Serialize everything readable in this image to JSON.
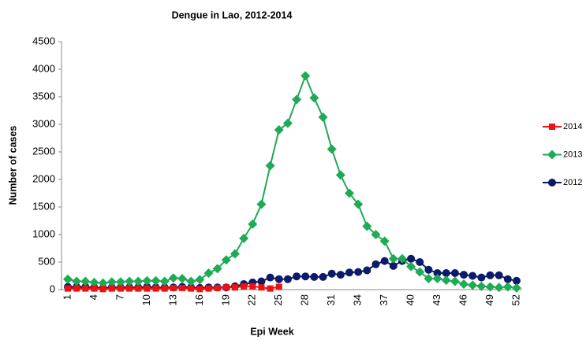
{
  "chart_data": {
    "type": "line",
    "title": "Dengue in Lao, 2012-2014",
    "x_label": "Epi Week",
    "y_label": "Number of cases",
    "categories": [
      "1",
      null,
      null,
      "4",
      null,
      null,
      "7",
      null,
      null,
      "10",
      null,
      null,
      "13",
      null,
      null,
      "16",
      null,
      null,
      "19",
      null,
      null,
      "22",
      null,
      null,
      "25",
      null,
      null,
      "28",
      null,
      null,
      "31",
      null,
      null,
      "34",
      null,
      null,
      "37",
      null,
      null,
      "40",
      null,
      null,
      "43",
      null,
      null,
      "46",
      null,
      null,
      "49",
      null,
      null,
      "52"
    ],
    "ylim": [
      0,
      4500
    ],
    "yticks": [
      0,
      500,
      1000,
      1500,
      2000,
      2500,
      3000,
      3500,
      4000,
      4500
    ],
    "grid": false,
    "legend": "right",
    "series": [
      {
        "name": "2014",
        "color": "#ee1111",
        "marker": "square",
        "values": [
          20,
          20,
          20,
          20,
          10,
          20,
          20,
          20,
          20,
          20,
          20,
          20,
          30,
          30,
          20,
          10,
          20,
          30,
          40,
          40,
          60,
          60,
          40,
          20,
          50,
          null,
          null,
          null,
          null,
          null,
          null,
          null,
          null,
          null,
          null,
          null,
          null,
          null,
          null,
          null,
          null,
          null,
          null,
          null,
          null,
          null,
          null,
          null,
          null,
          null,
          null,
          null
        ]
      },
      {
        "name": "2013",
        "color": "#1faa55",
        "marker": "diamond",
        "values": [
          190,
          150,
          150,
          130,
          120,
          140,
          140,
          150,
          150,
          160,
          160,
          150,
          210,
          200,
          150,
          180,
          300,
          380,
          540,
          650,
          930,
          1190,
          1550,
          2250,
          2900,
          3020,
          3450,
          3880,
          3480,
          3130,
          2550,
          2080,
          1750,
          1550,
          1150,
          1000,
          880,
          560,
          560,
          420,
          320,
          200,
          200,
          170,
          150,
          100,
          80,
          60,
          50,
          40,
          50,
          30
        ]
      },
      {
        "name": "2012",
        "color": "#0b1a6b",
        "marker": "circle",
        "values": [
          50,
          50,
          50,
          40,
          30,
          40,
          40,
          40,
          40,
          50,
          40,
          40,
          40,
          50,
          40,
          30,
          40,
          40,
          40,
          60,
          100,
          130,
          150,
          220,
          190,
          190,
          240,
          240,
          230,
          230,
          290,
          270,
          310,
          320,
          350,
          460,
          520,
          430,
          520,
          560,
          500,
          360,
          300,
          300,
          300,
          270,
          250,
          220,
          260,
          260,
          190,
          160
        ]
      }
    ]
  }
}
